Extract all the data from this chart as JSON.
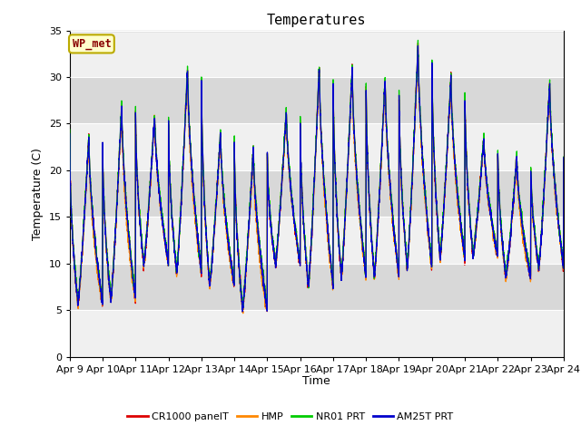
{
  "title": "Temperatures",
  "ylabel": "Temperature (C)",
  "xlabel": "Time",
  "ylim": [
    0,
    35
  ],
  "yticks": [
    0,
    5,
    10,
    15,
    20,
    25,
    30,
    35
  ],
  "xtick_labels": [
    "Apr 9",
    "Apr 10",
    "Apr 11",
    "Apr 12",
    "Apr 13",
    "Apr 14",
    "Apr 15",
    "Apr 16",
    "Apr 17",
    "Apr 18",
    "Apr 19",
    "Apr 20",
    "Apr 21",
    "Apr 22",
    "Apr 23",
    "Apr 24"
  ],
  "annotation_text": "WP_met",
  "annotation_bg": "#ffffcc",
  "annotation_border": "#bbaa00",
  "annotation_text_color": "#880000",
  "series_colors": [
    "#dd0000",
    "#ff8800",
    "#00cc00",
    "#0000cc"
  ],
  "series_labels": [
    "CR1000 panelT",
    "HMP",
    "NR01 PRT",
    "AM25T PRT"
  ],
  "bg_color": "#e8e8e8",
  "band_color_light": "#f0f0f0",
  "band_color_dark": "#d8d8d8",
  "daily_min_base": [
    5.5,
    6.0,
    9.8,
    9.0,
    7.5,
    5.0,
    9.8,
    7.5,
    8.5,
    8.5,
    9.5,
    10.5,
    10.8,
    8.5,
    9.5
  ],
  "daily_max_base": [
    23.5,
    27.0,
    26.0,
    31.0,
    24.0,
    22.5,
    26.5,
    31.2,
    31.0,
    30.0,
    33.5,
    30.0,
    23.5,
    21.5,
    29.5
  ],
  "hmp_offsets": [
    -2.0,
    -2.5,
    -0.5,
    -2.0,
    -1.0,
    -2.5,
    -0.5,
    -1.5,
    -1.5,
    -1.0,
    -1.0,
    -1.5,
    -0.5,
    -1.5,
    -0.5
  ]
}
